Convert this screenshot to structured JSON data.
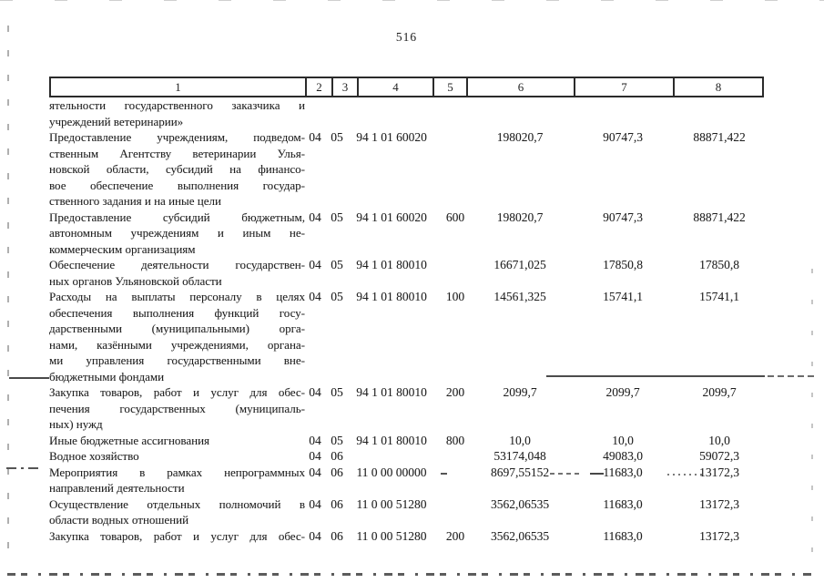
{
  "page": {
    "number": "516",
    "colors": {
      "paper": "#ffffff",
      "ink": "#1f1f1f",
      "table_border": "#2b2b2b"
    }
  },
  "table": {
    "header": {
      "columns": [
        "1",
        "2",
        "3",
        "4",
        "5",
        "6",
        "7",
        "8"
      ]
    },
    "rows": [
      {
        "lines": [
          "ятельности государственного заказчика и",
          "учреждений ветеринарии»"
        ],
        "c2": "",
        "c3": "",
        "c4": "",
        "c5": "",
        "c6": "",
        "c7": "",
        "c8": ""
      },
      {
        "lines": [
          "Предоставление учреждениям, подведом-",
          "ственным Агентству ветеринарии Улья-",
          "новской области, субсидий на финансо-",
          "вое обеспечение выполнения государ-",
          "ственного задания и на иные цели"
        ],
        "c2": "04",
        "c3": "05",
        "c4": "94 1 01 60020",
        "c5": "",
        "c6": "198020,7",
        "c7": "90747,3",
        "c8": "88871,422"
      },
      {
        "lines": [
          "Предоставление субсидий бюджетным,",
          "автономным учреждениям и иным не-",
          "коммерческим организациям"
        ],
        "c2": "04",
        "c3": "05",
        "c4": "94 1 01 60020",
        "c5": "600",
        "c6": "198020,7",
        "c7": "90747,3",
        "c8": "88871,422"
      },
      {
        "lines": [
          "Обеспечение деятельности государствен-",
          "ных органов Ульяновской области"
        ],
        "c2": "04",
        "c3": "05",
        "c4": "94 1 01 80010",
        "c5": "",
        "c6": "16671,025",
        "c7": "17850,8",
        "c8": "17850,8"
      },
      {
        "lines": [
          "Расходы на выплаты персоналу в целях",
          "обеспечения выполнения функций госу-",
          "дарственными (муниципальными) орга-",
          "нами, казёнными учреждениями, органа-",
          "ми управления государственными вне-",
          "бюджетными фондами"
        ],
        "c2": "04",
        "c3": "05",
        "c4": "94 1 01 80010",
        "c5": "100",
        "c6": "14561,325",
        "c7": "15741,1",
        "c8": "15741,1"
      },
      {
        "lines": [
          "Закупка товаров, работ и услуг для обес-",
          "печения государственных (муниципаль-",
          "ных) нужд"
        ],
        "c2": "04",
        "c3": "05",
        "c4": "94 1 01 80010",
        "c5": "200",
        "c6": "2099,7",
        "c7": "2099,7",
        "c8": "2099,7"
      },
      {
        "lines": [
          "Иные бюджетные ассигнования"
        ],
        "c2": "04",
        "c3": "05",
        "c4": "94 1 01 80010",
        "c5": "800",
        "c6": "10,0",
        "c7": "10,0",
        "c8": "10,0"
      },
      {
        "lines": [
          "Водное хозяйство"
        ],
        "c2": "04",
        "c3": "06",
        "c4": "",
        "c5": "",
        "c6": "53174,048",
        "c7": "49083,0",
        "c8": "59072,3"
      },
      {
        "lines": [
          "Мероприятия в рамках непрограммных",
          "направлений деятельности"
        ],
        "c2": "04",
        "c3": "06",
        "c4": "11 0 00 00000",
        "c5": "",
        "c6": "8697,55152",
        "c7": "11683,0",
        "c8": "13172,3"
      },
      {
        "lines": [
          "Осуществление отдельных полномочий в",
          "области водных отношений"
        ],
        "c2": "04",
        "c3": "06",
        "c4": "11 0 00 51280",
        "c5": "",
        "c6": "3562,06535",
        "c7": "11683,0",
        "c8": "13172,3"
      },
      {
        "lines": [
          "Закупка товаров, работ и услуг для обес-"
        ],
        "c2": "04",
        "c3": "06",
        "c4": "11 0 00 51280",
        "c5": "200",
        "c6": "3562,06535",
        "c7": "11683,0",
        "c8": "13172,3"
      }
    ]
  }
}
